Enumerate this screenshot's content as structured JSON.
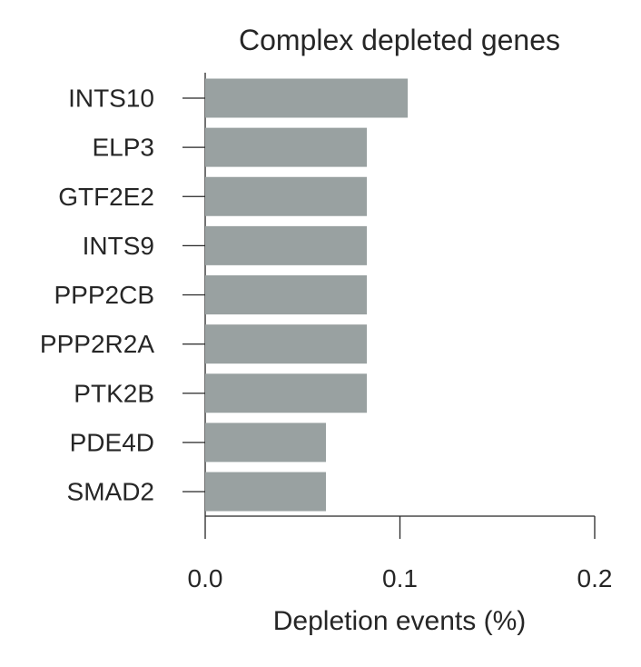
{
  "chart_data": {
    "type": "bar",
    "orientation": "horizontal",
    "title": "Complex depleted genes",
    "xlabel": "Depletion events (%)",
    "ylabel": "",
    "categories": [
      "INTS10",
      "ELP3",
      "GTF2E2",
      "INTS9",
      "PPP2CB",
      "PPP2R2A",
      "PTK2B",
      "PDE4D",
      "SMAD2"
    ],
    "values": [
      0.104,
      0.083,
      0.083,
      0.083,
      0.083,
      0.083,
      0.083,
      0.062,
      0.062
    ],
    "xlim": [
      0.0,
      0.2
    ],
    "xticks": [
      0.0,
      0.1,
      0.2
    ],
    "xtick_labels": [
      "0.0",
      "0.1",
      "0.2"
    ],
    "grid": false,
    "bar_color": "#99a1a1"
  }
}
